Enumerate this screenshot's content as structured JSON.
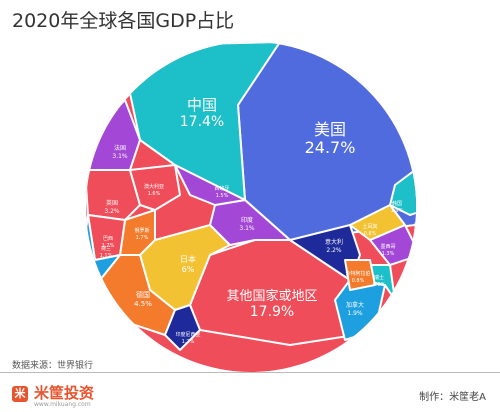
{
  "title": "2020年全球各国GDP占比",
  "source": "数据来源：世界银行",
  "footer": {
    "brand": "米筐投资",
    "logo_glyph": "米",
    "site": "www.mikuang.com",
    "credit": "制作：米筐老A"
  },
  "chart_data": {
    "type": "voronoi-treemap",
    "title": "2020年全球各国GDP占比",
    "unit": "%",
    "segments": [
      {
        "name": "美国",
        "value": "24.7%",
        "color": "#4f6bde"
      },
      {
        "name": "中国",
        "value": "17.4%",
        "color": "#1dbfc9"
      },
      {
        "name": "其他国家或地区",
        "value": "17.9%",
        "color": "#ef4d59"
      },
      {
        "name": "日本",
        "value": "6%",
        "color": "#f2c233"
      },
      {
        "name": "德国",
        "value": "4.5%",
        "color": "#f47b2c"
      },
      {
        "name": "法国",
        "value": "3.1%",
        "color": "#a347d6"
      },
      {
        "name": "英国",
        "value": "3.2%",
        "color": "#ef4d59"
      },
      {
        "name": "印度",
        "value": "3.1%",
        "color": "#a347d6"
      },
      {
        "name": "意大利",
        "value": "2.2%",
        "color": "#1e2a9a"
      },
      {
        "name": "加拿大",
        "value": "1.9%",
        "color": "#1e9fe0"
      },
      {
        "name": "韩国",
        "value": "1.9%",
        "color": "#1dbfc9"
      },
      {
        "name": "俄罗斯",
        "value": "1.7%",
        "color": "#f47b2c"
      },
      {
        "name": "澳大利亚",
        "value": "1.6%",
        "color": "#ef4d59"
      },
      {
        "name": "巴西",
        "value": "1.7%",
        "color": "#ef4d59"
      },
      {
        "name": "西班牙",
        "value": "1.5%",
        "color": "#a347d6"
      },
      {
        "name": "墨西哥",
        "value": "1.3%",
        "color": "#a347d6"
      },
      {
        "name": "荷兰",
        "value": "1.1%",
        "color": "#1e9fe0"
      },
      {
        "name": "印度尼西亚",
        "value": "1.2%",
        "color": "#1e2a9a"
      },
      {
        "name": "瑞士",
        "value": "0.9%",
        "color": "#1dbfc9"
      },
      {
        "name": "沙特阿拉伯",
        "value": "0.8%",
        "color": "#f47b2c"
      },
      {
        "name": "土耳其",
        "value": "0.8%",
        "color": "#f2c233"
      }
    ]
  }
}
